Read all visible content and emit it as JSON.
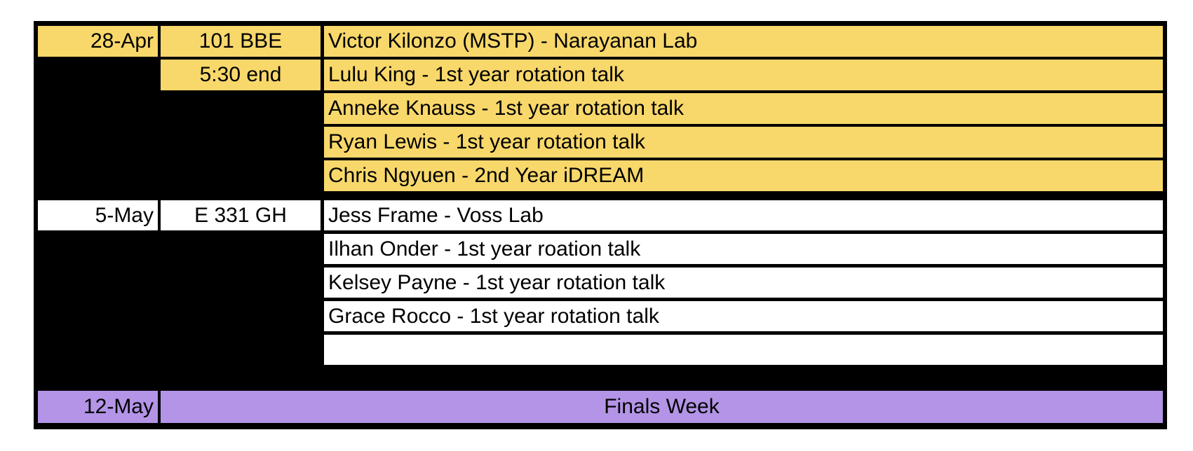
{
  "schedule": {
    "week1": {
      "date": "28-Apr",
      "room": "101 BBE",
      "note": "5:30 end",
      "talks": [
        "Victor Kilonzo (MSTP) - Narayanan Lab",
        "Lulu King - 1st year rotation talk",
        "Anneke Knauss - 1st year rotation talk",
        "Ryan Lewis - 1st year rotation talk",
        "Chris Ngyuen - 2nd Year iDREAM"
      ]
    },
    "week2": {
      "date": "5-May",
      "room": "E 331 GH",
      "talks": [
        "Jess Frame - Voss Lab",
        "Ilhan Onder - 1st year roation talk",
        "Kelsey Payne - 1st year rotation talk",
        "Grace Rocco - 1st year rotation talk",
        ""
      ]
    },
    "week3": {
      "date": "12-May",
      "label": "Finals Week"
    }
  },
  "colors": {
    "week1_fill": "#f8d86b",
    "week2_fill": "#ffffff",
    "week3_fill": "#b394e6",
    "border": "#000000"
  }
}
